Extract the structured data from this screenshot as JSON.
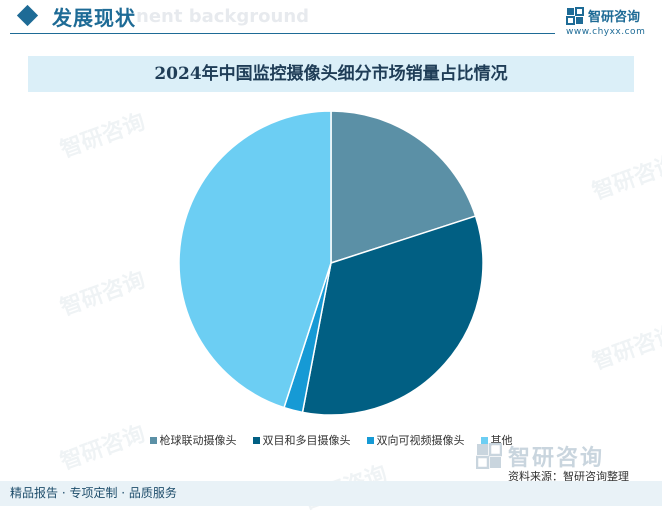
{
  "header": {
    "section_title": "发展现状",
    "watermark_text": "nent background",
    "brand_name": "智研咨询",
    "brand_url": "www.chyxx.com"
  },
  "chart_data": {
    "type": "pie",
    "title": "2024年中国监控摄像头细分市场销量占比情况",
    "categories": [
      "枪球联动摄像头",
      "双目和多目摄像头",
      "双向可视频摄像头",
      "其他"
    ],
    "values": [
      20.0,
      33.0,
      2.0,
      45.0
    ],
    "colors": [
      "#5b90a6",
      "#015f83",
      "#169ad5",
      "#6ccef3"
    ],
    "start_angle": "12 o'clock, clockwise",
    "legend_position": "bottom"
  },
  "watermark": {
    "brand_name": "智研咨询",
    "tagline": "INTELLIGENCE RESEARCH GROUP"
  },
  "source": {
    "text": "资料来源：智研咨询整理",
    "brand_name": "智研咨询"
  },
  "footer": {
    "text": "精品报告 · 专项定制 · 品质服务"
  },
  "colors": {
    "brand": "#1e6b96",
    "title_bar": "#dbeff8",
    "footer_bar": "#e9f2f7"
  }
}
